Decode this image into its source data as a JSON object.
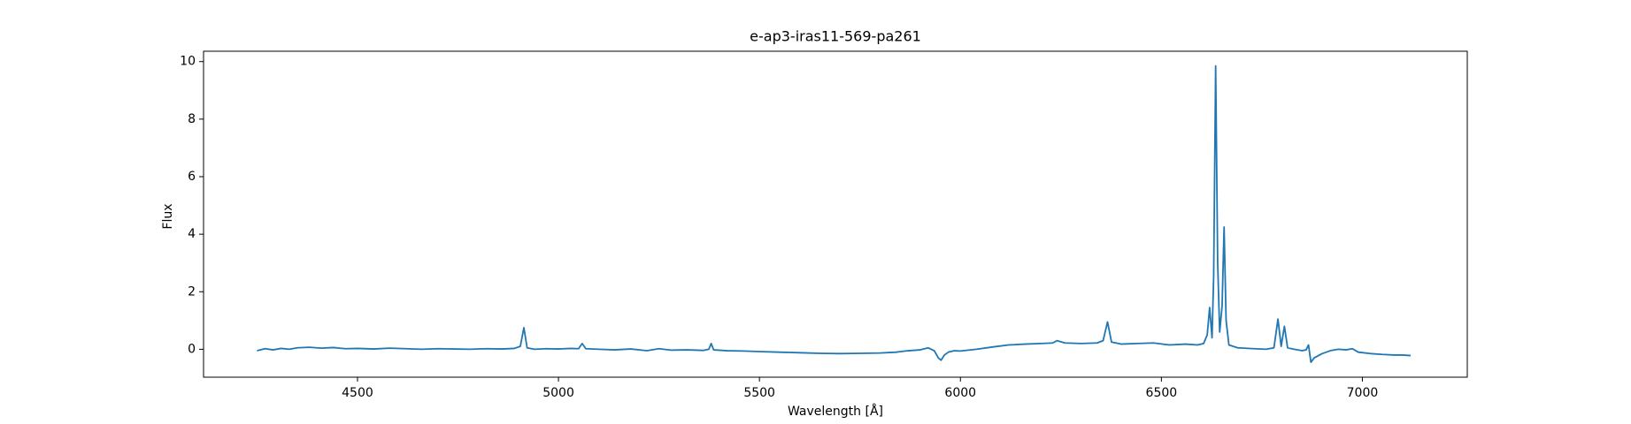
{
  "chart_data": {
    "type": "line",
    "title": "e-ap3-iras11-569-pa261",
    "x_label": "Wavelength [Å]",
    "y_label": "Flux",
    "xlim": [
      4117,
      7261
    ],
    "ylim": [
      -0.97,
      10.36
    ],
    "xticks": [
      4500,
      5000,
      5500,
      6000,
      6500,
      7000
    ],
    "yticks": [
      0,
      2,
      4,
      6,
      8,
      10
    ],
    "series": [
      {
        "name": "Flux",
        "color": "#1f77b4",
        "x": [
          4250,
          4270,
          4290,
          4310,
          4330,
          4350,
          4380,
          4410,
          4440,
          4470,
          4500,
          4540,
          4580,
          4620,
          4660,
          4700,
          4740,
          4780,
          4820,
          4860,
          4890,
          4905,
          4914,
          4922,
          4940,
          4970,
          5000,
          5030,
          5050,
          5059,
          5068,
          5100,
          5140,
          5180,
          5220,
          5250,
          5280,
          5320,
          5360,
          5374,
          5380,
          5386,
          5420,
          5460,
          5500,
          5550,
          5600,
          5650,
          5700,
          5750,
          5800,
          5840,
          5870,
          5900,
          5920,
          5935,
          5945,
          5952,
          5960,
          5970,
          5985,
          6000,
          6040,
          6080,
          6120,
          6160,
          6200,
          6230,
          6240,
          6260,
          6300,
          6340,
          6355,
          6366,
          6376,
          6400,
          6440,
          6480,
          6520,
          6560,
          6590,
          6605,
          6614,
          6620,
          6626,
          6630,
          6635,
          6640,
          6645,
          6651,
          6656,
          6661,
          6668,
          6690,
          6730,
          6760,
          6780,
          6790,
          6798,
          6806,
          6814,
          6830,
          6850,
          6860,
          6866,
          6872,
          6880,
          6900,
          6920,
          6940,
          6960,
          6975,
          6990,
          7020,
          7050,
          7080,
          7100,
          7120
        ],
        "values": [
          -0.05,
          0.02,
          -0.02,
          0.03,
          0.0,
          0.05,
          0.07,
          0.04,
          0.06,
          0.02,
          0.03,
          0.01,
          0.04,
          0.02,
          0.0,
          0.02,
          0.01,
          0.0,
          0.02,
          0.01,
          0.03,
          0.1,
          0.75,
          0.05,
          0.0,
          0.02,
          0.01,
          0.03,
          0.02,
          0.2,
          0.02,
          0.0,
          -0.02,
          0.01,
          -0.05,
          0.02,
          -0.03,
          -0.02,
          -0.04,
          0.0,
          0.2,
          -0.02,
          -0.05,
          -0.06,
          -0.08,
          -0.1,
          -0.12,
          -0.14,
          -0.15,
          -0.14,
          -0.13,
          -0.1,
          -0.05,
          -0.02,
          0.05,
          -0.05,
          -0.3,
          -0.38,
          -0.2,
          -0.1,
          -0.05,
          -0.06,
          0.0,
          0.08,
          0.15,
          0.18,
          0.2,
          0.22,
          0.3,
          0.22,
          0.2,
          0.22,
          0.3,
          0.95,
          0.25,
          0.18,
          0.2,
          0.22,
          0.15,
          0.18,
          0.15,
          0.2,
          0.5,
          1.45,
          0.4,
          2.5,
          9.85,
          3.0,
          0.6,
          1.5,
          4.25,
          1.0,
          0.15,
          0.05,
          0.02,
          0.0,
          0.05,
          1.05,
          0.1,
          0.8,
          0.05,
          0.0,
          -0.05,
          -0.02,
          0.15,
          -0.45,
          -0.3,
          -0.15,
          -0.05,
          0.0,
          -0.02,
          0.02,
          -0.1,
          -0.15,
          -0.18,
          -0.2,
          -0.2,
          -0.22
        ]
      }
    ]
  }
}
